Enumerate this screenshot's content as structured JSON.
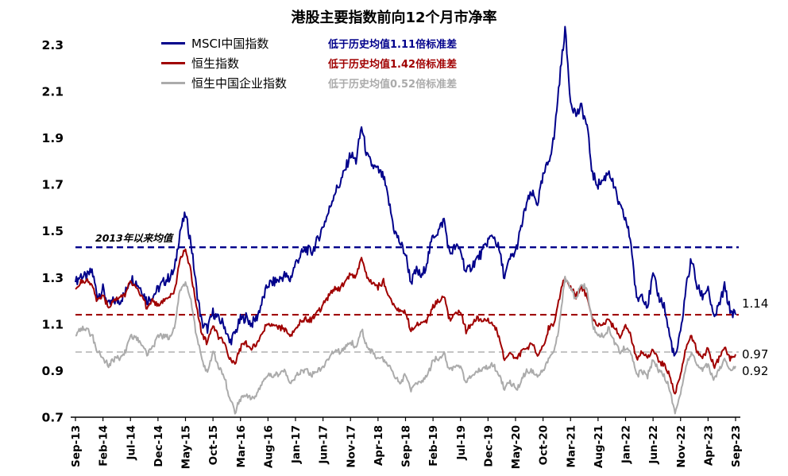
{
  "title": "港股主要指数前向12个月市净率",
  "legend": [
    {
      "label": "MSCI中国指数",
      "note": "低于历史均值1.11倍标准差",
      "color": "#00008B"
    },
    {
      "label": "恒生指数",
      "note": "低于历史均值1.42倍标准差",
      "color": "#A00000"
    },
    {
      "label": "恒生中国企业指数",
      "note": "低于历史均值0.52倍标准差",
      "color": "#ABABAB"
    }
  ],
  "annotations": {
    "mean_label": "2013年以来均值",
    "end_labels": [
      {
        "text": "1.14",
        "value": 1.14
      },
      {
        "text": "0.97",
        "value": 0.97
      },
      {
        "text": "0.92",
        "value": 0.92
      }
    ]
  },
  "chart_data": {
    "type": "line",
    "title": "港股主要指数前向12个月市净率",
    "xlabel": "",
    "ylabel": "前向12个月市净率",
    "ylim": [
      0.7,
      2.39
    ],
    "yticks": [
      0.7,
      0.9,
      1.1,
      1.3,
      1.5,
      1.7,
      1.9,
      2.1,
      2.3
    ],
    "grid": false,
    "legend_position": "upper-left",
    "x_start": "Sep-13",
    "x_end": "Sep-23",
    "x_frequency": "monthly",
    "xtick_labels": [
      "Sep-13",
      "Feb-14",
      "Jul-14",
      "Dec-14",
      "May-15",
      "Oct-15",
      "Mar-16",
      "Aug-16",
      "Jan-17",
      "Jun-17",
      "Nov-17",
      "Apr-18",
      "Sep-18",
      "Feb-19",
      "Jul-19",
      "Dec-19",
      "May-20",
      "Oct-20",
      "Mar-21",
      "Aug-21",
      "Jan-22",
      "Jun-22",
      "Nov-22",
      "Apr-23",
      "Sep-23"
    ],
    "xtick_every_n_months": 5,
    "hlines": [
      {
        "value": 1.43,
        "color": "#00008B",
        "style": "dashed",
        "label": "2013年以来均值"
      },
      {
        "value": 1.14,
        "color": "#A00000",
        "style": "dashed"
      },
      {
        "value": 0.98,
        "color": "#C4C4C4",
        "style": "dashed"
      }
    ],
    "series": [
      {
        "name": "MSCI中国指数",
        "color": "#00008B",
        "noise": 0.028,
        "end_value": 1.14,
        "values": [
          1.28,
          1.31,
          1.3,
          1.33,
          1.22,
          1.25,
          1.18,
          1.2,
          1.2,
          1.23,
          1.3,
          1.28,
          1.25,
          1.2,
          1.22,
          1.25,
          1.28,
          1.3,
          1.33,
          1.5,
          1.57,
          1.45,
          1.25,
          1.1,
          1.08,
          1.15,
          1.12,
          1.1,
          1.02,
          1.06,
          1.12,
          1.13,
          1.1,
          1.13,
          1.2,
          1.27,
          1.28,
          1.29,
          1.31,
          1.29,
          1.36,
          1.4,
          1.42,
          1.41,
          1.46,
          1.52,
          1.58,
          1.66,
          1.7,
          1.76,
          1.83,
          1.8,
          1.95,
          1.82,
          1.78,
          1.76,
          1.73,
          1.62,
          1.5,
          1.45,
          1.4,
          1.28,
          1.33,
          1.3,
          1.38,
          1.48,
          1.5,
          1.55,
          1.4,
          1.43,
          1.42,
          1.32,
          1.35,
          1.38,
          1.41,
          1.46,
          1.48,
          1.42,
          1.3,
          1.38,
          1.41,
          1.51,
          1.62,
          1.66,
          1.62,
          1.73,
          1.8,
          1.9,
          2.15,
          2.37,
          2.06,
          2.0,
          2.03,
          1.95,
          1.74,
          1.7,
          1.72,
          1.76,
          1.68,
          1.6,
          1.55,
          1.45,
          1.2,
          1.23,
          1.18,
          1.31,
          1.22,
          1.18,
          1.05,
          0.95,
          1.06,
          1.26,
          1.38,
          1.26,
          1.22,
          1.26,
          1.12,
          1.18,
          1.26,
          1.16,
          1.14
        ]
      },
      {
        "name": "恒生指数",
        "color": "#A00000",
        "noise": 0.02,
        "end_value": 0.97,
        "values": [
          1.25,
          1.28,
          1.29,
          1.27,
          1.2,
          1.22,
          1.17,
          1.2,
          1.21,
          1.23,
          1.28,
          1.26,
          1.22,
          1.17,
          1.2,
          1.18,
          1.2,
          1.22,
          1.24,
          1.38,
          1.42,
          1.32,
          1.17,
          1.05,
          1.02,
          1.1,
          1.05,
          1.02,
          0.95,
          0.93,
          1.0,
          1.02,
          0.99,
          1.02,
          1.07,
          1.1,
          1.1,
          1.09,
          1.08,
          1.05,
          1.08,
          1.12,
          1.12,
          1.12,
          1.15,
          1.18,
          1.22,
          1.25,
          1.25,
          1.28,
          1.32,
          1.3,
          1.4,
          1.3,
          1.28,
          1.26,
          1.28,
          1.22,
          1.18,
          1.15,
          1.15,
          1.07,
          1.1,
          1.1,
          1.12,
          1.18,
          1.2,
          1.22,
          1.12,
          1.15,
          1.15,
          1.07,
          1.1,
          1.12,
          1.11,
          1.12,
          1.1,
          1.05,
          0.94,
          0.98,
          0.95,
          0.98,
          1.0,
          1.01,
          0.97,
          1.0,
          1.08,
          1.1,
          1.22,
          1.3,
          1.26,
          1.22,
          1.26,
          1.22,
          1.12,
          1.1,
          1.1,
          1.12,
          1.08,
          1.05,
          1.1,
          1.05,
          0.95,
          0.98,
          0.95,
          1.0,
          0.95,
          0.92,
          0.88,
          0.8,
          0.88,
          1.0,
          1.05,
          0.98,
          0.96,
          1.0,
          0.92,
          0.95,
          1.0,
          0.95,
          0.97
        ]
      },
      {
        "name": "恒生中国企业指数",
        "color": "#ABABAB",
        "noise": 0.02,
        "end_value": 0.92,
        "values": [
          1.05,
          1.08,
          1.08,
          1.05,
          0.98,
          0.96,
          0.92,
          0.95,
          0.95,
          0.98,
          1.05,
          1.04,
          1.02,
          0.97,
          1.0,
          1.05,
          1.05,
          1.04,
          1.08,
          1.25,
          1.28,
          1.2,
          1.05,
          0.94,
          0.9,
          0.98,
          0.92,
          0.88,
          0.78,
          0.72,
          0.78,
          0.8,
          0.78,
          0.8,
          0.85,
          0.88,
          0.88,
          0.88,
          0.9,
          0.85,
          0.88,
          0.9,
          0.9,
          0.88,
          0.9,
          0.92,
          0.95,
          0.98,
          0.98,
          1.0,
          1.02,
          1.0,
          1.08,
          1.0,
          0.98,
          0.95,
          0.95,
          0.92,
          0.88,
          0.85,
          0.88,
          0.82,
          0.85,
          0.85,
          0.88,
          0.95,
          0.95,
          0.98,
          0.9,
          0.92,
          0.92,
          0.85,
          0.88,
          0.9,
          0.9,
          0.92,
          0.92,
          0.88,
          0.82,
          0.85,
          0.82,
          0.85,
          0.9,
          0.9,
          0.88,
          0.9,
          0.95,
          0.98,
          1.1,
          1.3,
          1.26,
          1.2,
          1.28,
          1.24,
          1.1,
          1.05,
          1.05,
          1.08,
          1.02,
          0.98,
          1.0,
          0.98,
          0.88,
          0.9,
          0.88,
          0.95,
          0.9,
          0.88,
          0.82,
          0.72,
          0.8,
          0.92,
          0.98,
          0.92,
          0.9,
          0.93,
          0.86,
          0.9,
          0.95,
          0.9,
          0.92
        ]
      }
    ]
  }
}
